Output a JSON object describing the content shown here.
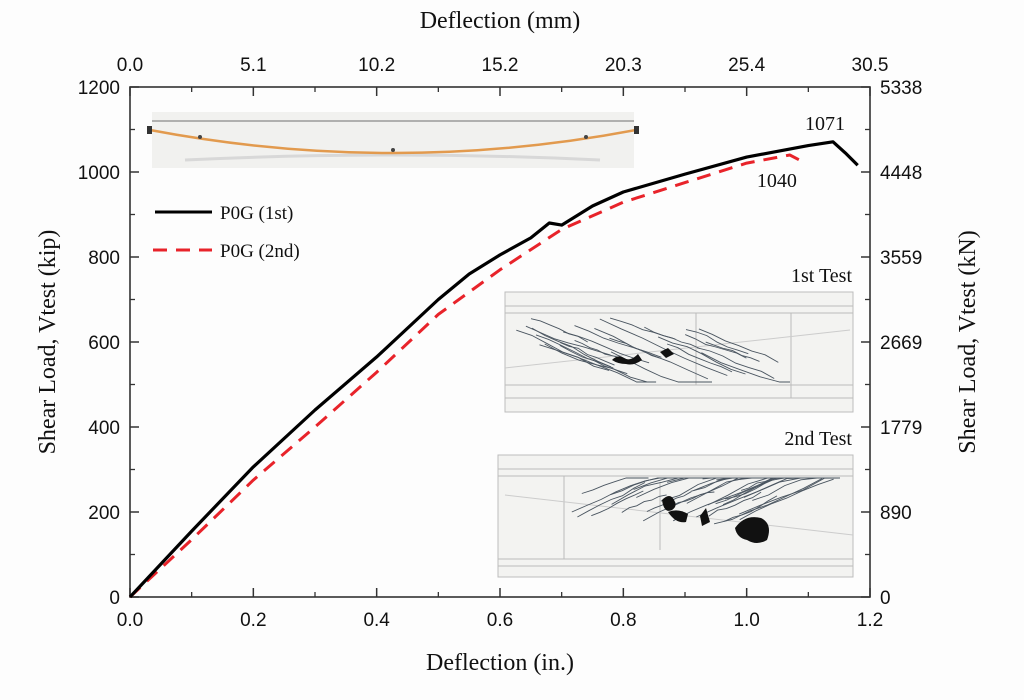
{
  "chart_data": {
    "type": "line",
    "title": "",
    "xlabel": "Deflection (in.)",
    "x2label": "Deflection (mm)",
    "ylabel": "Shear Load, Vtest (kip)",
    "y2label": "Shear Load, Vtest (kN)",
    "xlim": [
      0,
      1.2
    ],
    "ylim": [
      0,
      1200
    ],
    "x_ticks": [
      0.0,
      0.2,
      0.4,
      0.6,
      0.8,
      1.0,
      1.2
    ],
    "x_tick_labels": [
      "0.0",
      "0.2",
      "0.4",
      "0.6",
      "0.8",
      "1.0",
      "1.2"
    ],
    "x2_tick_labels": [
      "0.0",
      "5.1",
      "10.2",
      "15.2",
      "20.3",
      "25.4",
      "30.5"
    ],
    "y_ticks": [
      0,
      200,
      400,
      600,
      800,
      1000,
      1200
    ],
    "y_tick_labels": [
      "0",
      "200",
      "400",
      "600",
      "800",
      "1000",
      "1200"
    ],
    "y2_tick_labels": [
      "0",
      "890",
      "1779",
      "2669",
      "3559",
      "4448",
      "5338"
    ],
    "grid": false,
    "legend_position": "top-left",
    "series": [
      {
        "name": "P0G (1st)",
        "color": "#000000",
        "style": "solid",
        "x": [
          0,
          0.1,
          0.2,
          0.3,
          0.4,
          0.5,
          0.55,
          0.6,
          0.65,
          0.68,
          0.7,
          0.75,
          0.8,
          0.9,
          1.0,
          1.1,
          1.14,
          1.16,
          1.18
        ],
        "y": [
          0,
          155,
          306,
          440,
          565,
          700,
          760,
          805,
          845,
          880,
          875,
          920,
          953,
          995,
          1035,
          1062,
          1071,
          1045,
          1016
        ]
      },
      {
        "name": "P0G (2nd)",
        "color": "#e8232a",
        "style": "dashed",
        "x": [
          0,
          0.1,
          0.2,
          0.3,
          0.4,
          0.5,
          0.6,
          0.7,
          0.8,
          0.9,
          1.0,
          1.07,
          1.09
        ],
        "y": [
          0,
          135,
          275,
          400,
          529,
          665,
          770,
          865,
          929,
          975,
          1021,
          1040,
          1025
        ]
      }
    ],
    "annotations": [
      {
        "text": "1071",
        "x": 1.14,
        "y": 1071,
        "placement": "above"
      },
      {
        "text": "1040",
        "x": 1.07,
        "y": 1040,
        "placement": "below"
      }
    ],
    "insets": [
      {
        "name": "beam-elevation",
        "label": "",
        "description": "beam with draped orange tendon"
      },
      {
        "name": "crack-map-1st",
        "label": "1st Test"
      },
      {
        "name": "crack-map-2nd",
        "label": "2nd Test"
      }
    ]
  }
}
